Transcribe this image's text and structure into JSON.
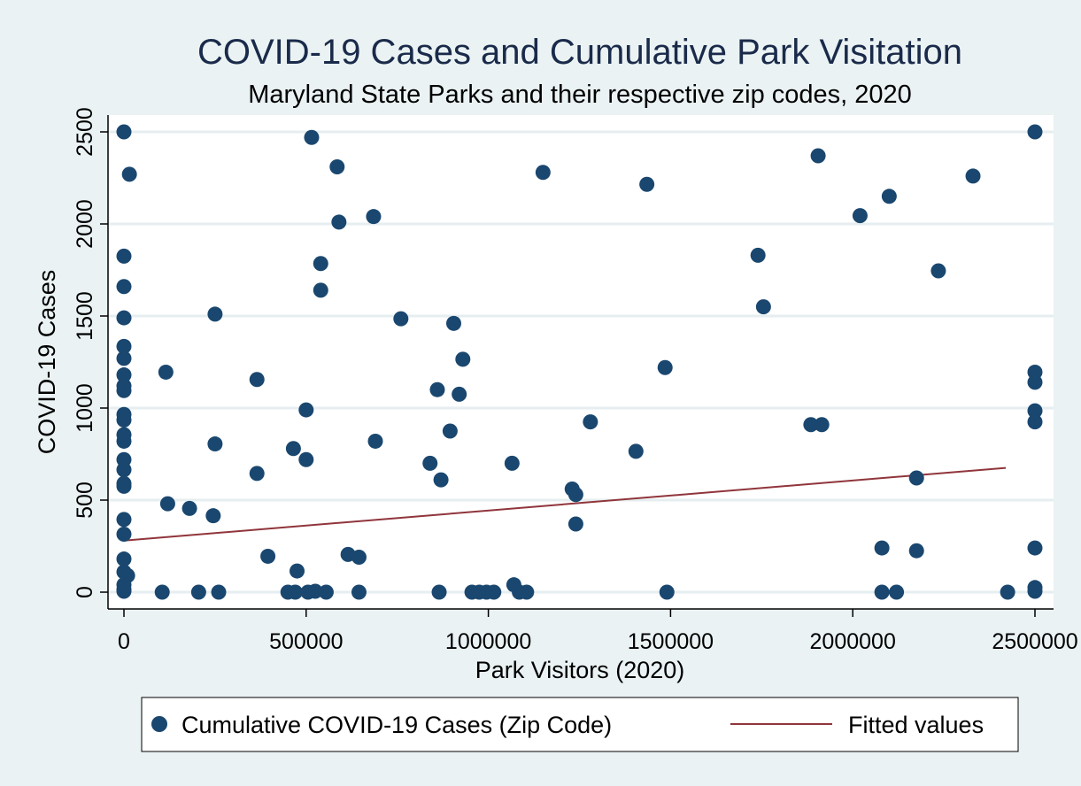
{
  "chart_data": {
    "type": "scatter",
    "title": "COVID-19 Cases and Cumulative Park Visitation",
    "subtitle": "Maryland State Parks and their respective zip codes, 2020",
    "xlabel": "Park Visitors (2020)",
    "ylabel": "COVID-19 Cases",
    "xlim": [
      0,
      2500000
    ],
    "ylim": [
      0,
      2500
    ],
    "xticks": [
      0,
      500000,
      1000000,
      1500000,
      2000000,
      2500000
    ],
    "xtick_labels": [
      "0",
      "500000",
      "1000000",
      "1500000",
      "2000000",
      "2500000"
    ],
    "yticks": [
      0,
      500,
      1000,
      1500,
      2000,
      2500
    ],
    "ytick_labels": [
      "0",
      "500",
      "1000",
      "1500",
      "2000",
      "2500"
    ],
    "grid": true,
    "legend_position": "bottom",
    "colors": {
      "background": "#eaf2f3",
      "plot_background": "#ffffff",
      "gridline": "#e6eef0",
      "marker": "#1a476f",
      "fit_line": "#90353b",
      "title": "#1a2a4a",
      "text": "#000000"
    },
    "series": [
      {
        "name": "Cumulative COVID-19 Cases (Zip Code)",
        "type": "scatter",
        "points": [
          [
            0,
            2500
          ],
          [
            15000,
            2270
          ],
          [
            0,
            1825
          ],
          [
            0,
            1660
          ],
          [
            0,
            1490
          ],
          [
            0,
            1335
          ],
          [
            0,
            1270
          ],
          [
            0,
            1180
          ],
          [
            0,
            1120
          ],
          [
            0,
            1095
          ],
          [
            0,
            965
          ],
          [
            0,
            935
          ],
          [
            0,
            855
          ],
          [
            0,
            820
          ],
          [
            0,
            720
          ],
          [
            0,
            665
          ],
          [
            0,
            590
          ],
          [
            0,
            575
          ],
          [
            0,
            395
          ],
          [
            0,
            315
          ],
          [
            0,
            180
          ],
          [
            0,
            110
          ],
          [
            10000,
            90
          ],
          [
            0,
            40
          ],
          [
            0,
            15
          ],
          [
            0,
            5
          ],
          [
            115000,
            1195
          ],
          [
            120000,
            480
          ],
          [
            180000,
            455
          ],
          [
            205000,
            0
          ],
          [
            105000,
            0
          ],
          [
            250000,
            1510
          ],
          [
            250000,
            805
          ],
          [
            245000,
            415
          ],
          [
            260000,
            0
          ],
          [
            365000,
            1155
          ],
          [
            365000,
            645
          ],
          [
            395000,
            195
          ],
          [
            515000,
            2470
          ],
          [
            585000,
            2310
          ],
          [
            590000,
            2010
          ],
          [
            540000,
            1785
          ],
          [
            540000,
            1640
          ],
          [
            500000,
            990
          ],
          [
            465000,
            780
          ],
          [
            500000,
            720
          ],
          [
            475000,
            115
          ],
          [
            450000,
            0
          ],
          [
            470000,
            0
          ],
          [
            505000,
            0
          ],
          [
            525000,
            5
          ],
          [
            555000,
            0
          ],
          [
            685000,
            2040
          ],
          [
            615000,
            205
          ],
          [
            645000,
            190
          ],
          [
            690000,
            820
          ],
          [
            645000,
            0
          ],
          [
            760000,
            1485
          ],
          [
            840000,
            700
          ],
          [
            860000,
            1100
          ],
          [
            870000,
            610
          ],
          [
            865000,
            0
          ],
          [
            905000,
            1460
          ],
          [
            930000,
            1265
          ],
          [
            920000,
            1075
          ],
          [
            895000,
            875
          ],
          [
            955000,
            0
          ],
          [
            975000,
            0
          ],
          [
            995000,
            0
          ],
          [
            1015000,
            0
          ],
          [
            1065000,
            700
          ],
          [
            1070000,
            40
          ],
          [
            1085000,
            0
          ],
          [
            1105000,
            0
          ],
          [
            1150000,
            2280
          ],
          [
            1230000,
            560
          ],
          [
            1240000,
            530
          ],
          [
            1240000,
            370
          ],
          [
            1280000,
            925
          ],
          [
            1435000,
            2215
          ],
          [
            1405000,
            765
          ],
          [
            1485000,
            1220
          ],
          [
            1490000,
            0
          ],
          [
            1740000,
            1830
          ],
          [
            1755000,
            1550
          ],
          [
            1905000,
            2370
          ],
          [
            1885000,
            910
          ],
          [
            1915000,
            910
          ],
          [
            2020000,
            2045
          ],
          [
            2100000,
            2150
          ],
          [
            2080000,
            240
          ],
          [
            2080000,
            0
          ],
          [
            2120000,
            0
          ],
          [
            2175000,
            620
          ],
          [
            2175000,
            225
          ],
          [
            2235000,
            1745
          ],
          [
            2330000,
            2260
          ],
          [
            2425000,
            0
          ],
          [
            2500000,
            2500
          ],
          [
            2500000,
            1195
          ],
          [
            2500000,
            1140
          ],
          [
            2500000,
            985
          ],
          [
            2500000,
            925
          ],
          [
            2500000,
            240
          ],
          [
            2500000,
            25
          ],
          [
            2500000,
            5
          ]
        ]
      },
      {
        "name": "Fitted values",
        "type": "line",
        "points": [
          [
            0,
            280
          ],
          [
            2420000,
            675
          ]
        ]
      }
    ]
  }
}
